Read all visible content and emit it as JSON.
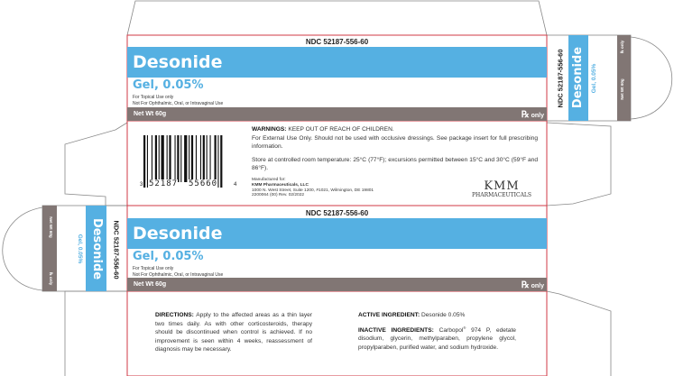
{
  "product": {
    "ndc": "NDC 52187-556-60",
    "name": "Desonide",
    "form": "Gel, 0.05%",
    "use_line1": "For Topical Use only",
    "use_line2": "Not For Ophthalmic, Oral, or Intravaginal Use",
    "net_wt": "Net Wt 60g",
    "rx_symbol": "℞",
    "rx_only": "only"
  },
  "warnings": {
    "label": "WARNINGS:",
    "line1": "KEEP OUT OF REACH OF CHILDREN.",
    "para1": "For External Use Only. Should not be used with occlusive dressings. See package insert for full prescribing information.",
    "storage": "Store at controlled room temperature: 25°C (77°F); excursions permitted between 15°C and 30°C (59°F and 86°F)."
  },
  "manufacturer": {
    "label": "Manufactured for:",
    "name": "KMM Pharmaceuticals, LLC",
    "address": "1000 N. West Street, Suite 1200, #1021, Wilmington, DE 19801",
    "code": "2200064 (00) Rev. 02/2022",
    "logo_top": "KMM",
    "logo_bottom": "PHARMACEUTICALS"
  },
  "barcode": {
    "left": "3",
    "main1": "52187",
    "main2": "55660",
    "right": "4"
  },
  "directions": {
    "label": "DIRECTIONS:",
    "text": "Apply to the affected areas as a thin layer two times daily. As with other corticosteroids, therapy should be discontinued when control is achieved. If no improvement is seen within 4 weeks, reassessment of diagnosis may be necessary."
  },
  "active": {
    "label": "ACTIVE INGREDIENT:",
    "text": "Desonide 0.05%"
  },
  "inactive": {
    "label": "INACTIVE INGREDIENTS:",
    "text1": "Carbopol",
    "reg": "®",
    "text2": " 974 P, edetate disodium, glycerin, methylparaben, propylene glycol, propylparaben, purified water, and sodium hydroxide."
  },
  "colors": {
    "brand_blue": "#55b0e2",
    "band_gray": "#817674",
    "cut_line_red": "#d03a45"
  }
}
